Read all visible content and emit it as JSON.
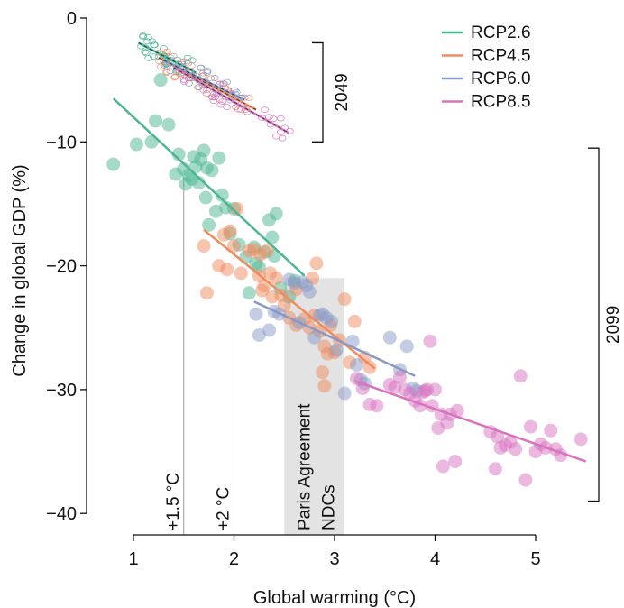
{
  "chart_data": {
    "type": "scatter",
    "title": "",
    "xlabel": "Global warming (°C)",
    "ylabel": "Change in global GDP (%)",
    "xlim": [
      0.55,
      5.55
    ],
    "ylim": [
      -41.5,
      0.5
    ],
    "xticks": [
      1,
      2,
      3,
      4,
      5
    ],
    "yticks": [
      0,
      -10,
      -20,
      -30,
      -40
    ],
    "ytick_labels": [
      "0",
      "−10",
      "−20",
      "−30",
      "−40"
    ],
    "legend_position": "top-right",
    "grid": false,
    "legend": [
      {
        "name": "RCP2.6",
        "color": "#4cb594"
      },
      {
        "name": "RCP4.5",
        "color": "#f08a5d"
      },
      {
        "name": "RCP6.0",
        "color": "#8899c6"
      },
      {
        "name": "RCP8.5",
        "color": "#d873c0"
      }
    ],
    "brackets": [
      {
        "label": "2049",
        "y_top": -2.0,
        "y_bottom": -10.0
      },
      {
        "label": "2099",
        "y_top": -10.5,
        "y_bottom": -39.0
      }
    ],
    "reference_lines": [
      {
        "label": "+1.5 °C",
        "x": 1.5
      },
      {
        "label": "+2 °C",
        "x": 2.0
      }
    ],
    "shaded_region": {
      "label_line1": "Paris Agreement",
      "label_line2": "NDCs",
      "x_range": [
        2.5,
        3.1
      ]
    },
    "series_2099": [
      {
        "name": "RCP2.6",
        "fit": [
          [
            0.8,
            -6.5
          ],
          [
            2.7,
            -20.8
          ]
        ],
        "points": [
          [
            0.8,
            -11.8
          ],
          [
            1.03,
            -10.2
          ],
          [
            1.18,
            -10.0
          ],
          [
            1.22,
            -8.3
          ],
          [
            1.27,
            -5.0
          ],
          [
            1.35,
            -8.6
          ],
          [
            1.42,
            -12.6
          ],
          [
            1.45,
            -11.0
          ],
          [
            1.5,
            -12.2
          ],
          [
            1.52,
            -13.4
          ],
          [
            1.55,
            -12.7
          ],
          [
            1.58,
            -13.0
          ],
          [
            1.6,
            -11.2
          ],
          [
            1.62,
            -12.0
          ],
          [
            1.65,
            -13.3
          ],
          [
            1.67,
            -11.4
          ],
          [
            1.7,
            -10.7
          ],
          [
            1.72,
            -14.5
          ],
          [
            1.73,
            -12.1
          ],
          [
            1.75,
            -16.7
          ],
          [
            1.78,
            -12.3
          ],
          [
            1.82,
            -15.6
          ],
          [
            1.85,
            -11.3
          ],
          [
            1.88,
            -14.3
          ],
          [
            1.92,
            -15.3
          ],
          [
            1.96,
            -17.4
          ],
          [
            2.0,
            -15.4
          ],
          [
            2.05,
            -18.3
          ],
          [
            2.12,
            -19.3
          ],
          [
            2.15,
            -22.2
          ],
          [
            2.2,
            -18.5
          ],
          [
            2.22,
            -19.8
          ],
          [
            2.25,
            -20.1
          ],
          [
            2.3,
            -18.9
          ],
          [
            2.35,
            -16.3
          ],
          [
            2.38,
            -17.7
          ],
          [
            2.4,
            -19.2
          ],
          [
            2.42,
            -15.8
          ],
          [
            2.46,
            -21.8
          ],
          [
            2.55,
            -22.5
          ],
          [
            2.6,
            -21.2
          ]
        ]
      },
      {
        "name": "RCP4.5",
        "fit": [
          [
            1.7,
            -17.1
          ],
          [
            3.4,
            -28.3
          ]
        ],
        "points": [
          [
            1.7,
            -18.4
          ],
          [
            1.73,
            -22.2
          ],
          [
            1.85,
            -20.0
          ],
          [
            1.9,
            -17.5
          ],
          [
            1.93,
            -20.3
          ],
          [
            1.96,
            -17.2
          ],
          [
            2.0,
            -18.4
          ],
          [
            2.03,
            -15.4
          ],
          [
            2.07,
            -20.6
          ],
          [
            2.15,
            -18.8
          ],
          [
            2.2,
            -18.7
          ],
          [
            2.25,
            -20.8
          ],
          [
            2.26,
            -19.1
          ],
          [
            2.28,
            -22.0
          ],
          [
            2.3,
            -21.6
          ],
          [
            2.33,
            -18.8
          ],
          [
            2.36,
            -20.6
          ],
          [
            2.38,
            -22.5
          ],
          [
            2.42,
            -21.0
          ],
          [
            2.47,
            -22.4
          ],
          [
            2.5,
            -23.2
          ],
          [
            2.55,
            -24.2
          ],
          [
            2.62,
            -21.9
          ],
          [
            2.7,
            -24.3
          ],
          [
            2.75,
            -25.0
          ],
          [
            2.78,
            -21.0
          ],
          [
            2.8,
            -24.0
          ],
          [
            2.82,
            -19.8
          ],
          [
            2.85,
            -25.3
          ],
          [
            2.88,
            -28.6
          ],
          [
            2.9,
            -26.5
          ],
          [
            2.93,
            -27.1
          ],
          [
            2.96,
            -24.8
          ],
          [
            3.0,
            -27.0
          ],
          [
            3.05,
            -26.0
          ],
          [
            3.1,
            -22.7
          ],
          [
            3.15,
            -27.8
          ],
          [
            3.2,
            -24.5
          ],
          [
            3.3,
            -27.4
          ],
          [
            3.35,
            -28.2
          ],
          [
            2.9,
            -29.7
          ],
          [
            2.62,
            -24.8
          ]
        ]
      },
      {
        "name": "RCP6.0",
        "fit": [
          [
            2.2,
            -22.9
          ],
          [
            3.8,
            -28.9
          ]
        ],
        "points": [
          [
            2.22,
            -23.9
          ],
          [
            2.25,
            -25.6
          ],
          [
            2.35,
            -25.2
          ],
          [
            2.4,
            -23.7
          ],
          [
            2.45,
            -23.9
          ],
          [
            2.55,
            -21.1
          ],
          [
            2.6,
            -21.4
          ],
          [
            2.65,
            -24.6
          ],
          [
            2.68,
            -21.3
          ],
          [
            2.72,
            -21.6
          ],
          [
            2.75,
            -22.1
          ],
          [
            2.8,
            -25.8
          ],
          [
            2.85,
            -24.0
          ],
          [
            2.88,
            -23.9
          ],
          [
            2.92,
            -24.2
          ],
          [
            2.97,
            -24.5
          ],
          [
            3.02,
            -26.8
          ],
          [
            3.1,
            -30.3
          ],
          [
            3.18,
            -26.1
          ],
          [
            3.22,
            -28.0
          ],
          [
            3.26,
            -29.2
          ],
          [
            3.3,
            -29.5
          ],
          [
            3.55,
            -25.8
          ],
          [
            3.65,
            -28.4
          ],
          [
            3.72,
            -26.5
          ],
          [
            3.78,
            -29.9
          ],
          [
            3.82,
            -30.1
          ]
        ]
      },
      {
        "name": "RCP8.5",
        "fit": [
          [
            3.2,
            -29.3
          ],
          [
            5.5,
            -35.8
          ]
        ],
        "points": [
          [
            3.22,
            -29.1
          ],
          [
            3.28,
            -29.9
          ],
          [
            3.35,
            -31.2
          ],
          [
            3.42,
            -31.3
          ],
          [
            3.55,
            -29.6
          ],
          [
            3.6,
            -29.8
          ],
          [
            3.65,
            -29.0
          ],
          [
            3.7,
            -30.0
          ],
          [
            3.75,
            -30.3
          ],
          [
            3.8,
            -30.9
          ],
          [
            3.85,
            -31.3
          ],
          [
            3.88,
            -30.2
          ],
          [
            3.9,
            -30.1
          ],
          [
            3.92,
            -30.0
          ],
          [
            3.95,
            -26.1
          ],
          [
            3.97,
            -31.3
          ],
          [
            4.0,
            -30.0
          ],
          [
            4.03,
            -33.1
          ],
          [
            4.06,
            -32.0
          ],
          [
            4.08,
            -36.2
          ],
          [
            4.12,
            -32.7
          ],
          [
            4.15,
            -32.0
          ],
          [
            4.2,
            -35.8
          ],
          [
            4.22,
            -31.7
          ],
          [
            4.55,
            -33.4
          ],
          [
            4.6,
            -36.4
          ],
          [
            4.62,
            -33.8
          ],
          [
            4.65,
            -34.7
          ],
          [
            4.7,
            -34.5
          ],
          [
            4.75,
            -34.2
          ],
          [
            4.8,
            -34.8
          ],
          [
            4.85,
            -28.9
          ],
          [
            4.9,
            -37.3
          ],
          [
            4.95,
            -33.0
          ],
          [
            5.0,
            -35.0
          ],
          [
            5.05,
            -34.4
          ],
          [
            5.1,
            -34.7
          ],
          [
            5.15,
            -33.3
          ],
          [
            5.2,
            -34.8
          ],
          [
            5.25,
            -35.3
          ],
          [
            5.45,
            -34.0
          ]
        ]
      }
    ],
    "series_2049": [
      {
        "name": "RCP2.6",
        "fit": [
          [
            1.05,
            -2.0
          ],
          [
            1.62,
            -4.4
          ]
        ],
        "x_range": [
          1.05,
          1.62
        ]
      },
      {
        "name": "RCP4.5",
        "fit": [
          [
            1.25,
            -3.2
          ],
          [
            2.22,
            -7.4
          ]
        ],
        "x_range": [
          1.25,
          2.22
        ]
      },
      {
        "name": "RCP6.0",
        "fit": [
          [
            1.3,
            -3.4
          ],
          [
            2.1,
            -6.6
          ]
        ],
        "x_range": [
          1.3,
          2.1
        ]
      },
      {
        "name": "RCP8.5",
        "fit": [
          [
            1.4,
            -4.0
          ],
          [
            2.55,
            -9.3
          ]
        ],
        "x_range": [
          1.4,
          2.6
        ]
      }
    ]
  }
}
